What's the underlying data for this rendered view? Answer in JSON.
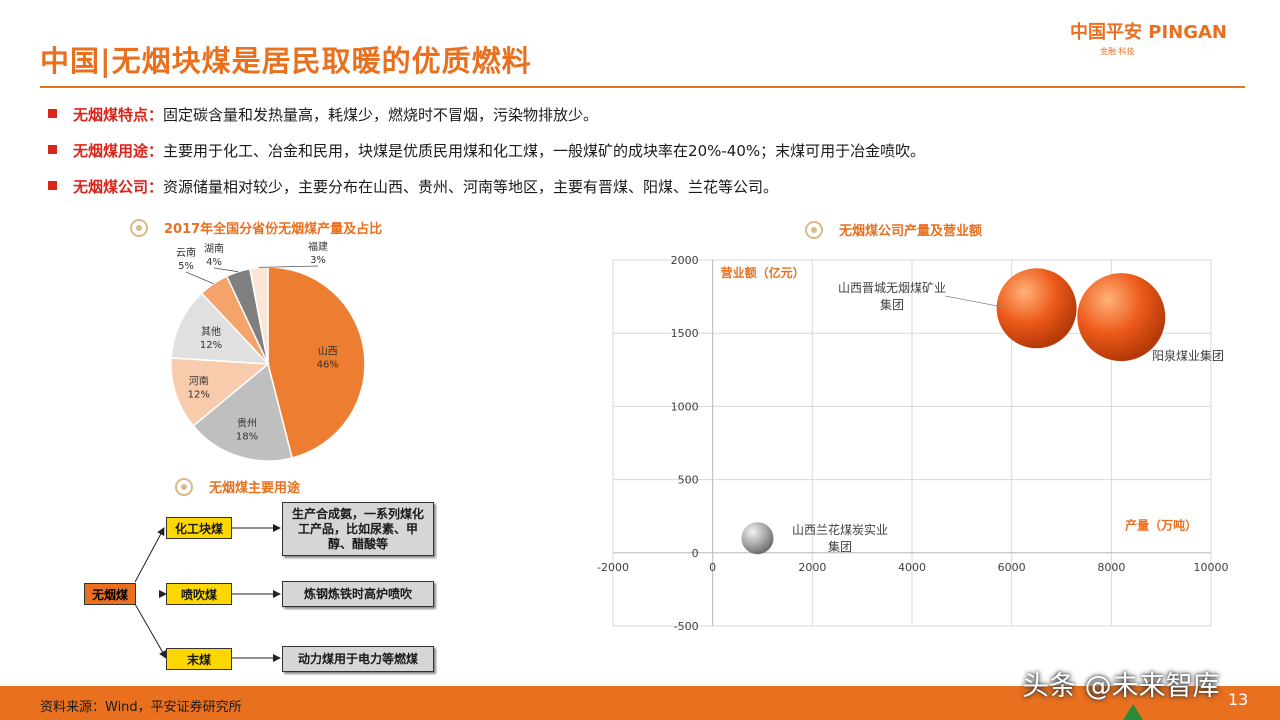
{
  "header": {
    "title": "中国|无烟块煤是居民取暖的优质燃料",
    "logo_main": "中国平安 PINGAN",
    "logo_sub": "金融·科技"
  },
  "bullets": [
    {
      "label": "无烟煤特点：",
      "text": "固定碳含量和发热量高，耗煤少，燃烧时不冒烟，污染物排放少。"
    },
    {
      "label": "无烟煤用途：",
      "text": "主要用于化工、冶金和民用，块煤是优质民用煤和化工煤，一般煤矿的成块率在20%-40%；末煤可用于冶金喷吹。"
    },
    {
      "label": "无烟煤公司：",
      "text": "资源储量相对较少，主要分布在山西、贵州、河南等地区，主要有晋煤、阳煤、兰花等公司。"
    }
  ],
  "sections": {
    "pie_title": "2017年全国分省份无烟煤产量及占比",
    "flow_title": "无烟煤主要用途",
    "bubble_title": "无烟煤公司产量及营业额"
  },
  "flow": {
    "root": "无烟煤",
    "branches": [
      {
        "name": "化工块煤",
        "use": "生产合成氨，一系列煤化工产品，比如尿素、甲醇、醋酸等"
      },
      {
        "name": "喷吹煤",
        "use": "炼钢炼铁时高炉喷吹"
      },
      {
        "name": "末煤",
        "use": "动力煤用于电力等燃煤"
      }
    ]
  },
  "footer": {
    "source": "资料来源：Wind，平安证券研究所",
    "page": "13",
    "watermark": "头条 @未来智库"
  },
  "colors": {
    "accent": "#e8701f",
    "bullet_red": "#d9261c",
    "flow_yellow": "#ffd700"
  },
  "chart_data": [
    {
      "type": "pie",
      "title": "2017年全国分省份无烟煤产量及占比",
      "slices": [
        {
          "label": "山西",
          "value": 46,
          "display": "46%",
          "color": "#ed7d31"
        },
        {
          "label": "贵州",
          "value": 18,
          "display": "18%",
          "color": "#bfbfbf"
        },
        {
          "label": "河南",
          "value": 12,
          "display": "12%",
          "color": "#f8cbad"
        },
        {
          "label": "其他",
          "value": 12,
          "display": "12%",
          "color": "#e0e0e0"
        },
        {
          "label": "云南",
          "value": 5,
          "display": "5%",
          "color": "#f4a46a"
        },
        {
          "label": "湖南",
          "value": 4,
          "display": "4%",
          "color": "#7f7f7f"
        },
        {
          "label": "福建",
          "value": 3,
          "display": "3%",
          "color": "#fbe5d6"
        }
      ]
    },
    {
      "type": "scatter",
      "subtype": "bubble",
      "title": "无烟煤公司产量及营业额",
      "xlabel": "产量（万吨）",
      "ylabel": "营业额（亿元）",
      "xlim": [
        -2000,
        10000
      ],
      "ylim": [
        -500,
        2000
      ],
      "xticks": [
        -2000,
        0,
        2000,
        4000,
        6000,
        8000,
        10000
      ],
      "yticks": [
        -500,
        0,
        500,
        1000,
        1500,
        2000
      ],
      "grid": true,
      "points": [
        {
          "name": "山西兰花煤炭实业集团",
          "x": 900,
          "y": 100,
          "size": 1,
          "color": "#a6a6a6"
        },
        {
          "name": "山西晋城无烟煤矿业集团",
          "x": 6500,
          "y": 1670,
          "size": 5,
          "color": "#ed5a1a"
        },
        {
          "name": "阳泉煤业集团",
          "x": 8200,
          "y": 1610,
          "size": 6,
          "color": "#ed5a1a"
        }
      ]
    }
  ]
}
